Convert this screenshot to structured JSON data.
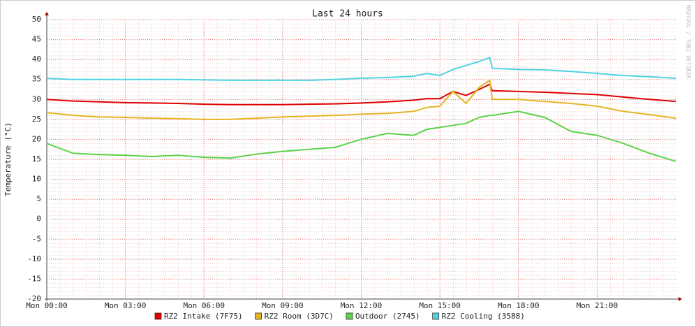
{
  "chart_data": {
    "type": "line",
    "title": "Last 24 hours",
    "y_label": "Temperature (°C)",
    "side_note": "RRDTOOL / TOBI OETIKER",
    "x": [
      0,
      1,
      2,
      3,
      4,
      5,
      6,
      7,
      8,
      9,
      10,
      11,
      12,
      13,
      14,
      14.5,
      15,
      15.5,
      16,
      16.5,
      16.9,
      17,
      18,
      19,
      20,
      21,
      22,
      23,
      24
    ],
    "xlim": [
      0,
      24
    ],
    "xticks": [
      {
        "value": 0,
        "label": "Mon 00:00"
      },
      {
        "value": 3,
        "label": "Mon 03:00"
      },
      {
        "value": 6,
        "label": "Mon 06:00"
      },
      {
        "value": 9,
        "label": "Mon 09:00"
      },
      {
        "value": 12,
        "label": "Mon 12:00"
      },
      {
        "value": 15,
        "label": "Mon 15:00"
      },
      {
        "value": 18,
        "label": "Mon 18:00"
      },
      {
        "value": 21,
        "label": "Mon 21:00"
      }
    ],
    "ylim": [
      -20,
      50
    ],
    "yticks": [
      -20,
      -15,
      -10,
      -5,
      0,
      5,
      10,
      15,
      20,
      25,
      30,
      35,
      40,
      45,
      50
    ],
    "grid": true,
    "series": [
      {
        "name": "RZ2 Intake (7F75)",
        "color": "#e00000",
        "values": [
          30,
          29.6,
          29.4,
          29.2,
          29.1,
          29,
          28.8,
          28.7,
          28.7,
          28.7,
          28.8,
          28.9,
          29.1,
          29.4,
          29.8,
          30.2,
          30.2,
          32,
          31,
          32.5,
          33.8,
          32.2,
          32,
          31.8,
          31.5,
          31.2,
          30.6,
          30,
          29.5
        ]
      },
      {
        "name": "RZ2 Room (3D7C)",
        "color": "#e6b422",
        "values": [
          26.7,
          26,
          25.6,
          25.5,
          25.3,
          25.2,
          25,
          25,
          25.3,
          25.6,
          25.8,
          26,
          26.3,
          26.5,
          27,
          28,
          28.3,
          32,
          29,
          33,
          34.8,
          30,
          30,
          29.5,
          29,
          28.3,
          27,
          26.2,
          25.3
        ]
      },
      {
        "name": "Outdoor (2745)",
        "color": "#5cd34a",
        "values": [
          19,
          16.5,
          16.2,
          16,
          15.7,
          16,
          15.5,
          15.3,
          16.3,
          17,
          17.5,
          18,
          20,
          21.5,
          21,
          22.5,
          23,
          23.5,
          24,
          25.5,
          26,
          26,
          27,
          25.5,
          22,
          21,
          19,
          16.5,
          14.5
        ]
      },
      {
        "name": "RZ2 Cooling (3588)",
        "color": "#4fd3e0",
        "values": [
          35.3,
          35,
          35,
          35,
          35,
          35,
          34.9,
          34.8,
          34.8,
          34.8,
          34.8,
          35,
          35.3,
          35.5,
          35.8,
          36.5,
          36,
          37.5,
          38.5,
          39.5,
          40.5,
          37.8,
          37.5,
          37.4,
          37,
          36.5,
          36,
          35.7,
          35.3
        ]
      }
    ]
  }
}
